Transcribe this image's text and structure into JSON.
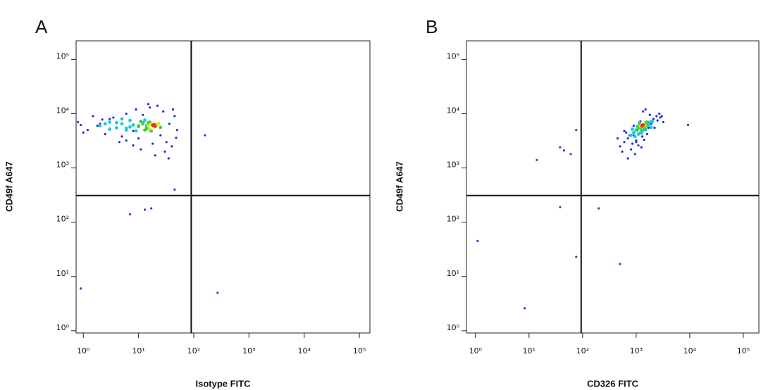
{
  "chart_data": [
    {
      "type": "scatter",
      "panel_label": "A",
      "xlabel": "Isotype FITC",
      "ylabel": "CD49f A647",
      "xscale": "log",
      "yscale": "log",
      "xlim": [
        0.74,
        155000
      ],
      "ylim": [
        0.91,
        220000
      ],
      "xticks": [
        {
          "value": 1,
          "label": "10⁰"
        },
        {
          "value": 10,
          "label": "10¹"
        },
        {
          "value": 100,
          "label": "10²"
        },
        {
          "value": 1000,
          "label": "10³"
        },
        {
          "value": 10000,
          "label": "10⁴"
        },
        {
          "value": 100000,
          "label": "10⁵"
        }
      ],
      "yticks": [
        {
          "value": 1,
          "label": "10⁰"
        },
        {
          "value": 10,
          "label": "10¹"
        },
        {
          "value": 100,
          "label": "10²"
        },
        {
          "value": 1000,
          "label": "10³"
        },
        {
          "value": 10000,
          "label": "10⁴"
        },
        {
          "value": 100000,
          "label": "10⁵"
        }
      ],
      "gates": {
        "x": 90,
        "y": 310
      },
      "series": [
        {
          "color": "#1f2fd8",
          "x": [
            0.8,
            1.2,
            1.5,
            2,
            2.5,
            3,
            4,
            5,
            6,
            7,
            8,
            9,
            10,
            12,
            14,
            16,
            18,
            22,
            25,
            28,
            32,
            36,
            40,
            45,
            50,
            1,
            1.8,
            3.5,
            6,
            11,
            15,
            30,
            42,
            0.9,
            2.2,
            4.5,
            8,
            20,
            35,
            48
          ],
          "y": [
            7000,
            5000,
            9000,
            6500,
            4200,
            8000,
            5500,
            3800,
            10000,
            7500,
            4800,
            12000,
            3500,
            9500,
            5200,
            13000,
            2800,
            14000,
            4000,
            11000,
            3000,
            6500,
            2500,
            9000,
            5000,
            4500,
            6000,
            8500,
            3200,
            2200,
            15000,
            2000,
            12000,
            6200,
            7800,
            3000,
            2600,
            1700,
            1500,
            3600
          ]
        },
        {
          "color": "#3040d0",
          "x": [
            0.9,
            270,
            160,
            7,
            13,
            17,
            45
          ],
          "y": [
            6,
            5,
            4000,
            140,
            170,
            180,
            400
          ]
        },
        {
          "color": "#19c8e0",
          "x": [
            2,
            3,
            4,
            5,
            6,
            7,
            8,
            10,
            12,
            3,
            5,
            9,
            14,
            4,
            6,
            11,
            2.5,
            7,
            16,
            13
          ],
          "y": [
            6000,
            7000,
            5500,
            6500,
            5000,
            7500,
            6200,
            5800,
            6800,
            5200,
            8000,
            4800,
            6000,
            6800,
            5400,
            7200,
            6500,
            5700,
            5000,
            7600
          ]
        },
        {
          "color": "#3cd23c",
          "x": [
            10,
            12,
            14,
            16,
            18,
            20,
            13,
            15,
            22,
            11,
            17,
            25
          ],
          "y": [
            6000,
            6500,
            5500,
            7000,
            6200,
            5800,
            5000,
            6800,
            6400,
            7200,
            4800,
            5600
          ]
        },
        {
          "color": "#e8e020",
          "x": [
            15,
            17,
            19,
            21,
            16,
            23
          ],
          "y": [
            6000,
            6400,
            5700,
            6200,
            5200,
            6600
          ]
        },
        {
          "color": "#e83020",
          "x": [
            18,
            20,
            19
          ],
          "y": [
            6100,
            5900,
            6300
          ]
        }
      ]
    },
    {
      "type": "scatter",
      "panel_label": "B",
      "xlabel": "CD326 FITC",
      "ylabel": "CD49f A647",
      "xscale": "log",
      "yscale": "log",
      "xlim": [
        0.68,
        195000
      ],
      "ylim": [
        0.91,
        220000
      ],
      "xticks": [
        {
          "value": 1,
          "label": "10⁰"
        },
        {
          "value": 10,
          "label": "10¹"
        },
        {
          "value": 100,
          "label": "10²"
        },
        {
          "value": 1000,
          "label": "10³"
        },
        {
          "value": 10000,
          "label": "10⁴"
        },
        {
          "value": 100000,
          "label": "10⁵"
        }
      ],
      "yticks": [
        {
          "value": 1,
          "label": "10⁰"
        },
        {
          "value": 10,
          "label": "10¹"
        },
        {
          "value": 100,
          "label": "10²"
        },
        {
          "value": 1000,
          "label": "10³"
        },
        {
          "value": 10000,
          "label": "10⁴"
        },
        {
          "value": 100000,
          "label": "10⁵"
        }
      ],
      "gates": {
        "x": 94,
        "y": 310
      },
      "series": [
        {
          "color": "#1f2fd8",
          "x": [
            500,
            600,
            700,
            800,
            900,
            1000,
            1100,
            1200,
            1300,
            1400,
            1500,
            1700,
            1900,
            2100,
            2400,
            2700,
            3000,
            450,
            650,
            850,
            1050,
            1250,
            1600,
            2000,
            2500,
            750,
            950,
            1150,
            1800,
            3200,
            550,
            1350,
            2200,
            700,
            1000,
            1500,
            900,
            1200,
            600,
            2800
          ],
          "y": [
            2500,
            3000,
            3500,
            2200,
            4000,
            3000,
            2600,
            4500,
            3800,
            3300,
            5000,
            5500,
            6500,
            8000,
            9000,
            10000,
            9000,
            3500,
            4500,
            2800,
            5000,
            2400,
            4200,
            7000,
            7500,
            4000,
            1800,
            6000,
            9500,
            7000,
            2000,
            11000,
            5500,
            1500,
            3200,
            12000,
            6000,
            7200,
            4800,
            8500
          ]
        },
        {
          "color": "#3040d0",
          "x": [
            1.1,
            8.3,
            14,
            38,
            45,
            38,
            76,
            500,
            9300,
            200,
            76,
            60
          ],
          "y": [
            45,
            2.6,
            1400,
            2400,
            2100,
            190,
            23,
            17,
            6200,
            180,
            5000,
            1800
          ]
        },
        {
          "color": "#19c8e0",
          "x": [
            800,
            900,
            1000,
            1100,
            1200,
            1300,
            1400,
            1500,
            1600,
            1800,
            950,
            1050,
            1250,
            1700,
            2000,
            1150,
            1350,
            850,
            1450,
            1900
          ],
          "y": [
            4000,
            4500,
            5000,
            4200,
            5500,
            4800,
            6000,
            5200,
            6500,
            7000,
            3800,
            5800,
            4400,
            6200,
            7200,
            6800,
            5000,
            5200,
            6600,
            5600
          ]
        },
        {
          "color": "#3cd23c",
          "x": [
            1100,
            1200,
            1300,
            1400,
            1500,
            1250,
            1350,
            1150,
            1450,
            1600,
            1050,
            1550
          ],
          "y": [
            5500,
            6000,
            5800,
            6400,
            6800,
            5200,
            6200,
            6500,
            5600,
            7000,
            5000,
            6000
          ]
        },
        {
          "color": "#e8e020",
          "x": [
            1250,
            1350,
            1300,
            1400,
            1200,
            1450
          ],
          "y": [
            6000,
            6300,
            5700,
            6500,
            5900,
            6100
          ]
        },
        {
          "color": "#e83020",
          "x": [
            1300,
            1350,
            1280
          ],
          "y": [
            6100,
            6200,
            5900
          ]
        }
      ]
    }
  ]
}
